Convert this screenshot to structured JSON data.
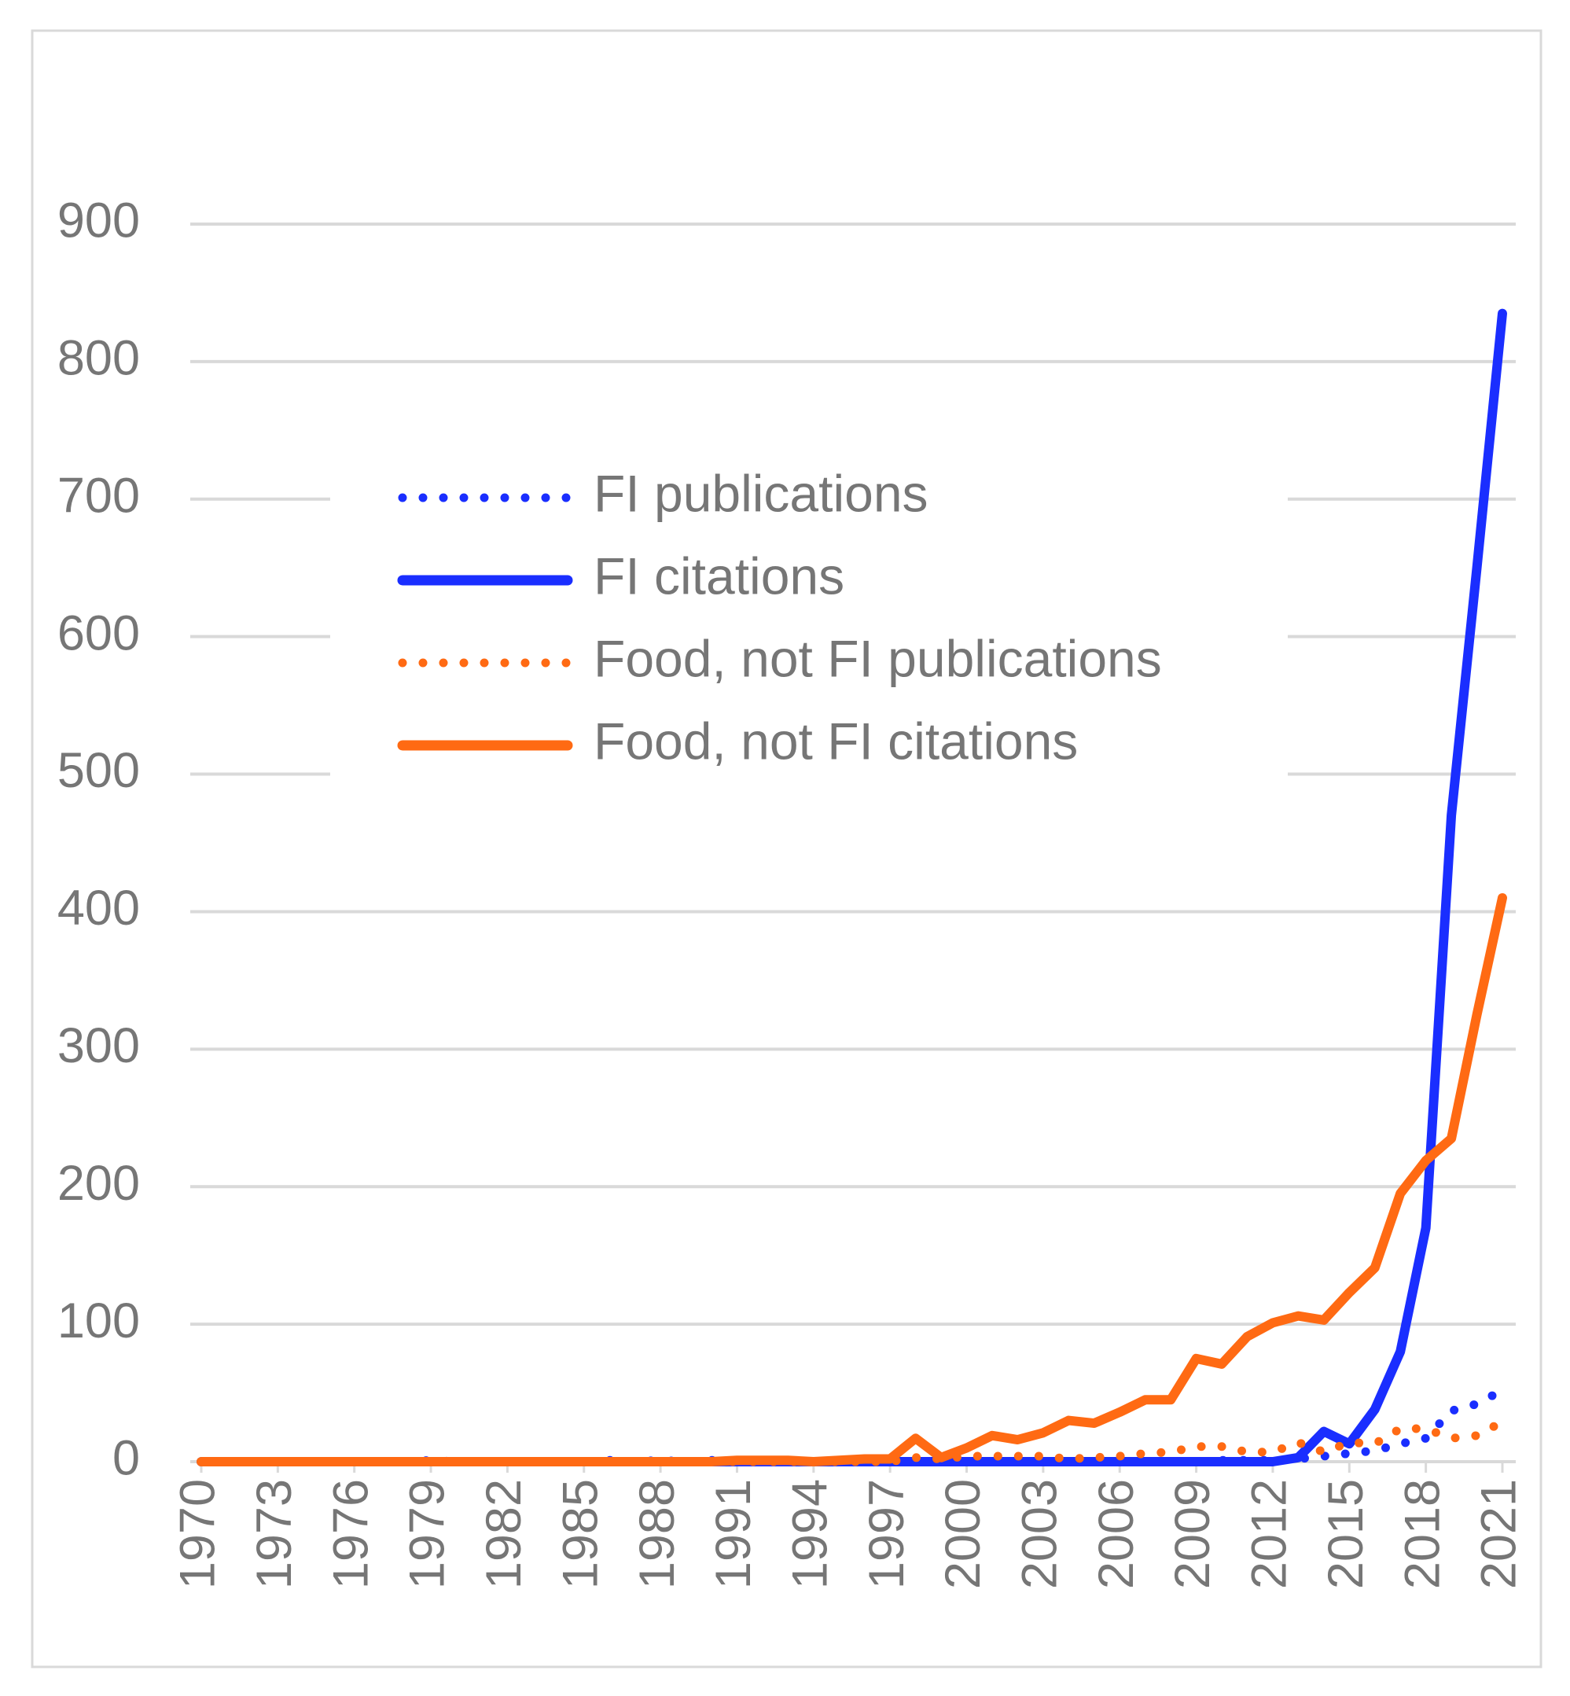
{
  "chart_data": {
    "type": "line",
    "x": [
      1970,
      1971,
      1972,
      1973,
      1974,
      1975,
      1976,
      1977,
      1978,
      1979,
      1980,
      1981,
      1982,
      1983,
      1984,
      1985,
      1986,
      1987,
      1988,
      1989,
      1990,
      1991,
      1992,
      1993,
      1994,
      1995,
      1996,
      1997,
      1998,
      1999,
      2000,
      2001,
      2002,
      2003,
      2004,
      2005,
      2006,
      2007,
      2008,
      2009,
      2010,
      2011,
      2012,
      2013,
      2014,
      2015,
      2016,
      2017,
      2018,
      2019,
      2020,
      2021
    ],
    "xlim": [
      1970,
      2021
    ],
    "xticks": [
      1970,
      1973,
      1976,
      1979,
      1982,
      1985,
      1988,
      1991,
      1994,
      1997,
      2000,
      2003,
      2006,
      2009,
      2012,
      2015,
      2018,
      2021
    ],
    "ylim": [
      0,
      900
    ],
    "yticks": [
      0,
      100,
      200,
      300,
      400,
      500,
      600,
      700,
      800,
      900
    ],
    "grid": true,
    "legend": "upper center",
    "series": [
      {
        "name": "FI publications",
        "color": "#1a2eff",
        "style": "dotted",
        "values": [
          0,
          0,
          0,
          0,
          0,
          0,
          0,
          0,
          0,
          1,
          0,
          0,
          0,
          0,
          0,
          0,
          1,
          0,
          1,
          0,
          1,
          0,
          0,
          0,
          0,
          0,
          0,
          0,
          0,
          0,
          0,
          0,
          0,
          0,
          0,
          0,
          0,
          0,
          0,
          0,
          1,
          1,
          1,
          2,
          4,
          6,
          8,
          13,
          17,
          37,
          42,
          52
        ]
      },
      {
        "name": "FI citations",
        "color": "#1a2eff",
        "style": "solid",
        "values": [
          0,
          0,
          0,
          0,
          0,
          0,
          0,
          0,
          0,
          0,
          0,
          0,
          0,
          0,
          0,
          0,
          0,
          0,
          0,
          0,
          0,
          0,
          0,
          0,
          0,
          0,
          0,
          0,
          0,
          0,
          0,
          0,
          0,
          0,
          0,
          0,
          0,
          0,
          0,
          0,
          0,
          0,
          0,
          3,
          22,
          13,
          38,
          80,
          170,
          470,
          650,
          835
        ]
      },
      {
        "name": "Food, not FI publications",
        "color": "#ff6a13",
        "style": "dotted",
        "values": [
          0,
          0,
          0,
          0,
          0,
          0,
          0,
          0,
          0,
          0,
          0,
          0,
          0,
          0,
          0,
          0,
          0,
          0,
          0,
          0,
          0,
          0,
          0,
          0,
          0,
          0,
          0,
          0,
          3,
          2,
          4,
          4,
          4,
          4,
          2,
          3,
          4,
          6,
          7,
          11,
          11,
          7,
          7,
          14,
          7,
          14,
          13,
          24,
          24,
          17,
          19,
          29
        ]
      },
      {
        "name": "Food, not FI citations",
        "color": "#ff6a13",
        "style": "solid",
        "values": [
          0,
          0,
          0,
          0,
          0,
          0,
          0,
          0,
          0,
          0,
          0,
          0,
          0,
          0,
          0,
          0,
          0,
          0,
          0,
          0,
          0,
          1,
          1,
          1,
          0,
          1,
          2,
          2,
          17,
          3,
          10,
          19,
          16,
          21,
          30,
          28,
          36,
          45,
          45,
          75,
          71,
          91,
          101,
          106,
          103,
          123,
          141,
          195,
          219,
          235,
          325,
          410
        ]
      }
    ]
  }
}
